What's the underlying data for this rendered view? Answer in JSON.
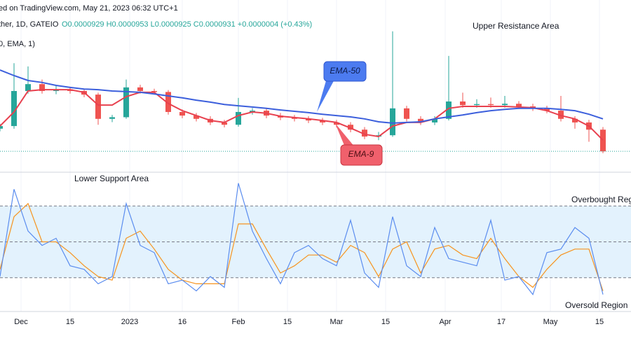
{
  "header": {
    "source": "ed on TradingView.com, May 21, 2023 06:32 UTC+1",
    "symbol": "ther, 1D, GATEIO",
    "ohlc": "O0.0000929 H0.0000953 L0.0000925 C0.0000931 +0.0000004 (+0.43%)",
    "indicator": "0, EMA, 1)"
  },
  "chart_data": [
    {
      "type": "candlestick",
      "x": [
        -6,
        -2,
        2,
        6,
        10,
        14,
        18,
        22,
        26,
        30,
        34,
        38,
        42,
        46,
        50,
        54,
        58,
        62,
        66,
        70,
        74,
        78,
        82,
        86,
        90,
        94,
        98,
        102,
        106,
        110,
        114,
        118,
        122,
        126,
        130,
        134,
        138,
        142,
        146,
        150,
        154,
        158,
        162,
        166
      ],
      "open": [
        0.0001,
        0.0001008,
        0.0001115,
        0.0001136,
        0.0001115,
        0.000112,
        0.0001115,
        0.0001104,
        0.000103,
        0.0001035,
        0.0001126,
        0.0001115,
        0.0001112,
        0.0001051,
        0.000104,
        0.000103,
        0.0001019,
        0.0001012,
        0.0001051,
        0.0001055,
        0.000104,
        0.0001034,
        0.000103,
        0.0001025,
        0.0001019,
        0.0001012,
        9.97e-05,
        9.76e-05,
        9.8e-05,
        0.0001062,
        0.000103,
        0.0001019,
        0.000103,
        0.0001083,
        0.0001072,
        0.0001075,
        0.0001072,
        0.0001076,
        0.0001068,
        0.0001062,
        0.0001055,
        0.000103,
        0.0001019,
        9.97e-05
      ],
      "high": [
        0.0001015,
        0.00012,
        0.000119,
        0.000115,
        0.000113,
        0.0001128,
        0.0001122,
        0.000111,
        0.0001042,
        0.000115,
        0.0001134,
        0.0001122,
        0.0001118,
        0.0001059,
        0.0001048,
        0.0001038,
        0.0001027,
        0.0001094,
        0.0001063,
        0.0001063,
        0.0001048,
        0.0001042,
        0.0001038,
        0.0001033,
        0.0001027,
        0.000102,
        0.0001005,
        9.9e-05,
        0.0001297,
        0.000107,
        0.0001038,
        0.0001038,
        0.0001222,
        0.000111,
        0.000109,
        0.0001095,
        0.00011,
        0.0001084,
        0.0001076,
        0.000107,
        0.00011,
        0.0001038,
        0.0001027,
        0.0001005
      ],
      "low": [
        9.92e-05,
        0.0001,
        0.0001107,
        0.0001107,
        0.0001105,
        0.0001107,
        0.0001096,
        0.0001012,
        0.000102,
        0.000103,
        0.0001107,
        0.0001104,
        0.0001043,
        0.0001032,
        0.0001022,
        0.0001011,
        0.0001004,
        0.0001006,
        0.0001043,
        0.0001032,
        0.0001026,
        0.0001022,
        0.0001017,
        0.0001011,
        0.0001004,
        9.89e-05,
        9.68e-05,
        9.65e-05,
        9.75e-05,
        0.0001022,
        0.0001011,
        0.0001011,
        0.0001025,
        0.0001064,
        0.0001064,
        0.0001064,
        0.0001064,
        0.000106,
        0.0001054,
        0.0001047,
        0.0001022,
        0.0001,
        9.6e-05,
        9.25e-05
      ],
      "close": [
        0.0001008,
        0.0001115,
        0.0001136,
        0.0001115,
        0.000112,
        0.0001115,
        0.0001104,
        0.000103,
        0.0001035,
        0.0001126,
        0.0001115,
        0.0001112,
        0.0001051,
        0.000104,
        0.000103,
        0.0001019,
        0.0001012,
        0.0001051,
        0.0001055,
        0.000104,
        0.0001034,
        0.000103,
        0.0001025,
        0.0001019,
        0.0001012,
        9.97e-05,
        9.76e-05,
        9.8e-05,
        0.0001062,
        0.000103,
        0.0001019,
        0.000103,
        0.0001083,
        0.0001072,
        0.0001075,
        0.0001072,
        0.0001076,
        0.0001068,
        0.0001062,
        0.0001055,
        0.000103,
        0.0001019,
        9.97e-05,
        9.31e-05
      ],
      "up_color": "#26a69a",
      "down_color": "#ef5350",
      "series": [
        {
          "name": "EMA-9",
          "color": "#e8414f",
          "values": [
            0.0001008,
            0.0001051,
            0.0001115,
            0.0001119,
            0.0001119,
            0.0001119,
            0.0001111,
            0.0001072,
            0.0001072,
            0.0001098,
            0.0001111,
            0.0001111,
            0.0001077,
            0.0001055,
            0.000104,
            0.0001025,
            0.0001019,
            0.000104,
            0.0001051,
            0.0001047,
            0.0001038,
            0.0001034,
            0.000103,
            0.0001025,
            0.0001019,
            0.0001002,
            9.83e-05,
            9.76e-05,
            0.0001008,
            0.0001019,
            0.0001019,
            0.000103,
            0.0001062,
            0.0001068,
            0.0001068,
            0.0001068,
            0.0001068,
            0.0001066,
            0.0001064,
            0.0001055,
            0.000104,
            0.000103,
            0.0001008,
            9.65e-05
          ]
        },
        {
          "name": "EMA-50",
          "color": "#3c5fdc",
          "values": [
            0.0001179,
            0.0001162,
            0.0001147,
            0.0001141,
            0.0001132,
            0.0001126,
            0.0001121,
            0.0001119,
            0.0001115,
            0.0001113,
            0.0001111,
            0.0001106,
            0.00011,
            0.0001094,
            0.0001087,
            0.0001081,
            0.0001074,
            0.000107,
            0.0001066,
            0.0001062,
            0.0001057,
            0.0001053,
            0.0001049,
            0.0001044,
            0.000104,
            0.0001036,
            0.000103,
            0.0001021,
            0.0001017,
            0.0001019,
            0.0001021,
            0.000103,
            0.0001036,
            0.0001042,
            0.0001049,
            0.0001055,
            0.0001059,
            0.0001062,
            0.0001062,
            0.0001062,
            0.0001059,
            0.0001055,
            0.0001044,
            0.000103
          ]
        }
      ],
      "xlim": [
        -6,
        174
      ],
      "ylim": [
        8.8e-05,
        0.000135
      ],
      "xticks": [
        {
          "value": 0,
          "label": "Dec"
        },
        {
          "value": 14,
          "label": "15"
        },
        {
          "value": 31,
          "label": "2023"
        },
        {
          "value": 46,
          "label": "16"
        },
        {
          "value": 62,
          "label": "Feb"
        },
        {
          "value": 76,
          "label": "15"
        },
        {
          "value": 90,
          "label": "Mar"
        },
        {
          "value": 104,
          "label": "15"
        },
        {
          "value": 121,
          "label": "Apr"
        },
        {
          "value": 137,
          "label": "17"
        },
        {
          "value": 151,
          "label": "May"
        },
        {
          "value": 165,
          "label": "15"
        }
      ],
      "annotations": [
        "Upper Resistance Area"
      ]
    },
    {
      "type": "line",
      "series": [
        {
          "color": "#5b8def",
          "values": [
            21,
            94,
            59,
            47,
            53,
            30,
            27,
            15,
            21,
            82,
            47,
            41,
            15,
            18,
            9,
            21,
            12,
            99,
            59,
            36,
            15,
            41,
            47,
            36,
            30,
            68,
            24,
            12,
            71,
            30,
            21,
            62,
            36,
            33,
            30,
            68,
            18,
            21,
            6,
            41,
            44,
            62,
            53,
            6
          ]
        },
        {
          "color": "#f7931e",
          "values": [
            27,
            71,
            82,
            50,
            50,
            41,
            30,
            21,
            18,
            53,
            59,
            44,
            27,
            18,
            15,
            15,
            15,
            65,
            65,
            44,
            24,
            30,
            39,
            39,
            33,
            47,
            41,
            21,
            44,
            50,
            24,
            44,
            47,
            39,
            36,
            53,
            36,
            21,
            12,
            27,
            39,
            44,
            44,
            9
          ]
        }
      ],
      "ylim": [
        0,
        100
      ],
      "yticks": [
        20,
        50,
        80
      ],
      "band_color": "#e3f2fd",
      "annotations": [
        "Lower Support Area",
        "Overbought Reg",
        "Oversold Region"
      ]
    }
  ]
}
